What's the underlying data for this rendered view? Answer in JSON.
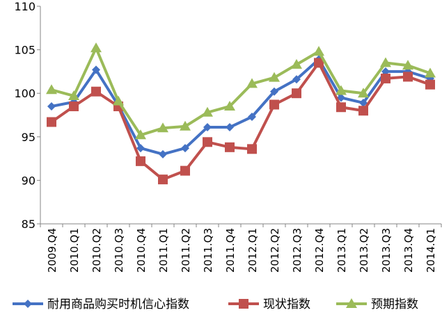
{
  "chart_data": {
    "type": "line",
    "categories": [
      "2009.Q4",
      "2010.Q1",
      "2010.Q2",
      "2010.Q3",
      "2010.Q4",
      "2011.Q1",
      "2011.Q2",
      "2011.Q3",
      "2011.Q4",
      "2012.Q1",
      "2012.Q2",
      "2012.Q3",
      "2012.Q4",
      "2013.Q1",
      "2013.Q2",
      "2013.Q3",
      "2013.Q4",
      "2014.Q1"
    ],
    "ylim": [
      85,
      110
    ],
    "yticks": [
      "85",
      "90",
      "95",
      "100",
      "105",
      "110"
    ],
    "grid": false,
    "legend_position": "bottom",
    "series": [
      {
        "name": "耐用商品购买时机信心指数",
        "color": "#4472C4",
        "marker": "diamond",
        "values": [
          98.5,
          99.0,
          102.7,
          98.6,
          93.7,
          93.0,
          93.7,
          96.1,
          96.1,
          97.3,
          100.2,
          101.6,
          103.9,
          99.5,
          98.9,
          102.5,
          102.5,
          101.7
        ]
      },
      {
        "name": "现状指数",
        "color": "#C0504D",
        "marker": "square",
        "values": [
          96.7,
          98.5,
          100.2,
          98.5,
          92.2,
          90.1,
          91.1,
          94.4,
          93.8,
          93.6,
          98.7,
          100.0,
          103.5,
          98.4,
          98.0,
          101.7,
          101.9,
          101.0
        ]
      },
      {
        "name": "预期指数",
        "color": "#9BBB59",
        "marker": "triangle",
        "values": [
          100.4,
          99.7,
          105.2,
          99.1,
          95.2,
          96.0,
          96.2,
          97.8,
          98.5,
          101.1,
          101.8,
          103.3,
          104.8,
          100.3,
          100.0,
          103.5,
          103.2,
          102.3
        ]
      }
    ]
  }
}
